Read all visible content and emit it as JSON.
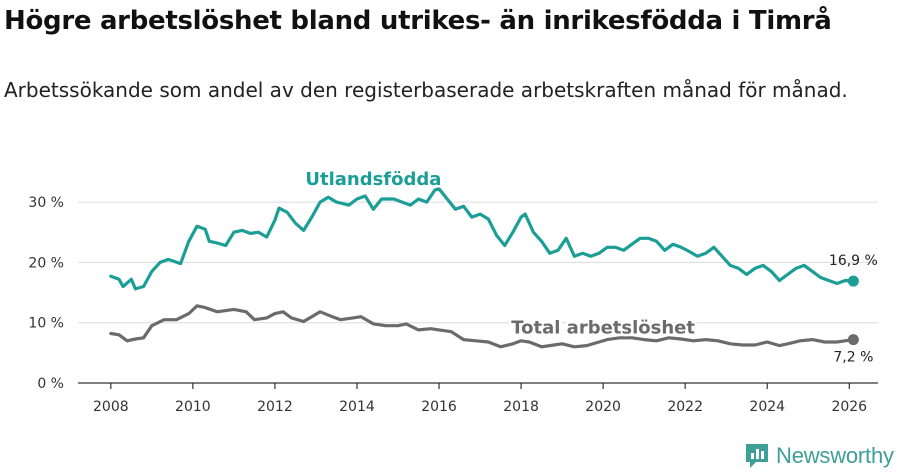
{
  "title": "Högre arbetslöshet bland utrikes- än inrikesfödda i Timrå",
  "subtitle": "Arbetssökande som andel av den registerbaserade arbetskraften månad för månad.",
  "brand": {
    "name": "Newsworthy",
    "color": "#3e9f96"
  },
  "chart_data": {
    "type": "line",
    "title": "",
    "xlabel": "",
    "ylabel": "",
    "xlim": [
      2007.2,
      2026.7
    ],
    "ylim": [
      0,
      32
    ],
    "grid": true,
    "x_ticks": [
      2008,
      2010,
      2012,
      2014,
      2016,
      2018,
      2020,
      2022,
      2024,
      2026
    ],
    "x_tick_labels": [
      "2008",
      "2010",
      "2012",
      "2014",
      "2016",
      "2018",
      "2020",
      "2022",
      "2024",
      "2026"
    ],
    "y_ticks": [
      0,
      10,
      20,
      30
    ],
    "y_tick_labels": [
      "0 %",
      "10 %",
      "20 %",
      "30 %"
    ],
    "series": [
      {
        "name": "Utlandsfödda",
        "color": "#1a9e96",
        "end_label": "16,9 %",
        "points": [
          [
            2008.0,
            17.7
          ],
          [
            2008.2,
            17.2
          ],
          [
            2008.3,
            16.0
          ],
          [
            2008.5,
            17.2
          ],
          [
            2008.6,
            15.6
          ],
          [
            2008.8,
            16.0
          ],
          [
            2009.0,
            18.5
          ],
          [
            2009.2,
            20.0
          ],
          [
            2009.4,
            20.5
          ],
          [
            2009.7,
            19.8
          ],
          [
            2009.9,
            23.5
          ],
          [
            2010.1,
            26.0
          ],
          [
            2010.3,
            25.5
          ],
          [
            2010.4,
            23.5
          ],
          [
            2010.6,
            23.2
          ],
          [
            2010.8,
            22.8
          ],
          [
            2011.0,
            25.0
          ],
          [
            2011.2,
            25.3
          ],
          [
            2011.4,
            24.8
          ],
          [
            2011.6,
            25.0
          ],
          [
            2011.8,
            24.2
          ],
          [
            2012.0,
            27.0
          ],
          [
            2012.1,
            29.0
          ],
          [
            2012.3,
            28.3
          ],
          [
            2012.5,
            26.5
          ],
          [
            2012.7,
            25.3
          ],
          [
            2012.9,
            27.5
          ],
          [
            2013.1,
            30.0
          ],
          [
            2013.3,
            30.8
          ],
          [
            2013.5,
            30.0
          ],
          [
            2013.8,
            29.5
          ],
          [
            2014.0,
            30.5
          ],
          [
            2014.2,
            31.0
          ],
          [
            2014.4,
            28.8
          ],
          [
            2014.6,
            30.5
          ],
          [
            2014.9,
            30.5
          ],
          [
            2015.1,
            30.0
          ],
          [
            2015.3,
            29.5
          ],
          [
            2015.5,
            30.5
          ],
          [
            2015.7,
            30.0
          ],
          [
            2015.9,
            32.0
          ],
          [
            2016.0,
            32.2
          ],
          [
            2016.2,
            30.5
          ],
          [
            2016.4,
            28.8
          ],
          [
            2016.6,
            29.3
          ],
          [
            2016.8,
            27.5
          ],
          [
            2017.0,
            28.0
          ],
          [
            2017.2,
            27.2
          ],
          [
            2017.4,
            24.5
          ],
          [
            2017.6,
            22.8
          ],
          [
            2017.8,
            25.0
          ],
          [
            2018.0,
            27.5
          ],
          [
            2018.1,
            28.0
          ],
          [
            2018.3,
            25.0
          ],
          [
            2018.5,
            23.5
          ],
          [
            2018.7,
            21.5
          ],
          [
            2018.9,
            22.0
          ],
          [
            2019.1,
            24.0
          ],
          [
            2019.3,
            21.0
          ],
          [
            2019.5,
            21.5
          ],
          [
            2019.7,
            21.0
          ],
          [
            2019.9,
            21.5
          ],
          [
            2020.1,
            22.5
          ],
          [
            2020.3,
            22.5
          ],
          [
            2020.5,
            22.0
          ],
          [
            2020.7,
            23.0
          ],
          [
            2020.9,
            24.0
          ],
          [
            2021.1,
            24.0
          ],
          [
            2021.3,
            23.5
          ],
          [
            2021.5,
            22.0
          ],
          [
            2021.7,
            23.0
          ],
          [
            2021.9,
            22.5
          ],
          [
            2022.1,
            21.8
          ],
          [
            2022.3,
            21.0
          ],
          [
            2022.5,
            21.5
          ],
          [
            2022.7,
            22.5
          ],
          [
            2022.9,
            21.0
          ],
          [
            2023.1,
            19.5
          ],
          [
            2023.3,
            19.0
          ],
          [
            2023.5,
            18.0
          ],
          [
            2023.7,
            19.0
          ],
          [
            2023.9,
            19.5
          ],
          [
            2024.1,
            18.5
          ],
          [
            2024.3,
            17.0
          ],
          [
            2024.5,
            18.0
          ],
          [
            2024.7,
            19.0
          ],
          [
            2024.9,
            19.5
          ],
          [
            2025.1,
            18.5
          ],
          [
            2025.3,
            17.5
          ],
          [
            2025.5,
            17.0
          ],
          [
            2025.7,
            16.5
          ],
          [
            2025.9,
            17.0
          ],
          [
            2026.1,
            16.9
          ]
        ]
      },
      {
        "name": "Total arbetslöshet",
        "color": "#6b6b6b",
        "end_label": "7,2 %",
        "points": [
          [
            2008.0,
            8.2
          ],
          [
            2008.2,
            8.0
          ],
          [
            2008.4,
            7.0
          ],
          [
            2008.6,
            7.3
          ],
          [
            2008.8,
            7.5
          ],
          [
            2009.0,
            9.5
          ],
          [
            2009.3,
            10.5
          ],
          [
            2009.6,
            10.5
          ],
          [
            2009.9,
            11.5
          ],
          [
            2010.1,
            12.8
          ],
          [
            2010.3,
            12.5
          ],
          [
            2010.6,
            11.8
          ],
          [
            2010.8,
            12.0
          ],
          [
            2011.0,
            12.2
          ],
          [
            2011.3,
            11.8
          ],
          [
            2011.5,
            10.5
          ],
          [
            2011.8,
            10.8
          ],
          [
            2012.0,
            11.5
          ],
          [
            2012.2,
            11.8
          ],
          [
            2012.4,
            10.8
          ],
          [
            2012.7,
            10.2
          ],
          [
            2012.9,
            11.0
          ],
          [
            2013.1,
            11.8
          ],
          [
            2013.4,
            11.0
          ],
          [
            2013.6,
            10.5
          ],
          [
            2013.9,
            10.8
          ],
          [
            2014.1,
            11.0
          ],
          [
            2014.4,
            9.8
          ],
          [
            2014.7,
            9.5
          ],
          [
            2015.0,
            9.5
          ],
          [
            2015.2,
            9.8
          ],
          [
            2015.5,
            8.8
          ],
          [
            2015.8,
            9.0
          ],
          [
            2016.0,
            8.8
          ],
          [
            2016.3,
            8.5
          ],
          [
            2016.6,
            7.2
          ],
          [
            2016.9,
            7.0
          ],
          [
            2017.2,
            6.8
          ],
          [
            2017.5,
            6.0
          ],
          [
            2017.8,
            6.5
          ],
          [
            2018.0,
            7.0
          ],
          [
            2018.2,
            6.8
          ],
          [
            2018.5,
            6.0
          ],
          [
            2018.8,
            6.3
          ],
          [
            2019.0,
            6.5
          ],
          [
            2019.3,
            6.0
          ],
          [
            2019.6,
            6.2
          ],
          [
            2019.9,
            6.8
          ],
          [
            2020.1,
            7.2
          ],
          [
            2020.4,
            7.5
          ],
          [
            2020.7,
            7.5
          ],
          [
            2021.0,
            7.2
          ],
          [
            2021.3,
            7.0
          ],
          [
            2021.6,
            7.5
          ],
          [
            2021.9,
            7.3
          ],
          [
            2022.2,
            7.0
          ],
          [
            2022.5,
            7.2
          ],
          [
            2022.8,
            7.0
          ],
          [
            2023.1,
            6.5
          ],
          [
            2023.4,
            6.3
          ],
          [
            2023.7,
            6.3
          ],
          [
            2024.0,
            6.8
          ],
          [
            2024.3,
            6.2
          ],
          [
            2024.5,
            6.5
          ],
          [
            2024.8,
            7.0
          ],
          [
            2025.1,
            7.2
          ],
          [
            2025.4,
            6.8
          ],
          [
            2025.7,
            6.8
          ],
          [
            2025.9,
            7.0
          ],
          [
            2026.1,
            7.2
          ]
        ]
      }
    ],
    "annotations": [
      {
        "text": "Utlandsfödda",
        "series": "Utlandsfödda",
        "x": 2014.4,
        "y": 32.8
      },
      {
        "text": "Total arbetslöshet",
        "series": "Total arbetslöshet",
        "x": 2020.0,
        "y": 8.2
      }
    ]
  }
}
